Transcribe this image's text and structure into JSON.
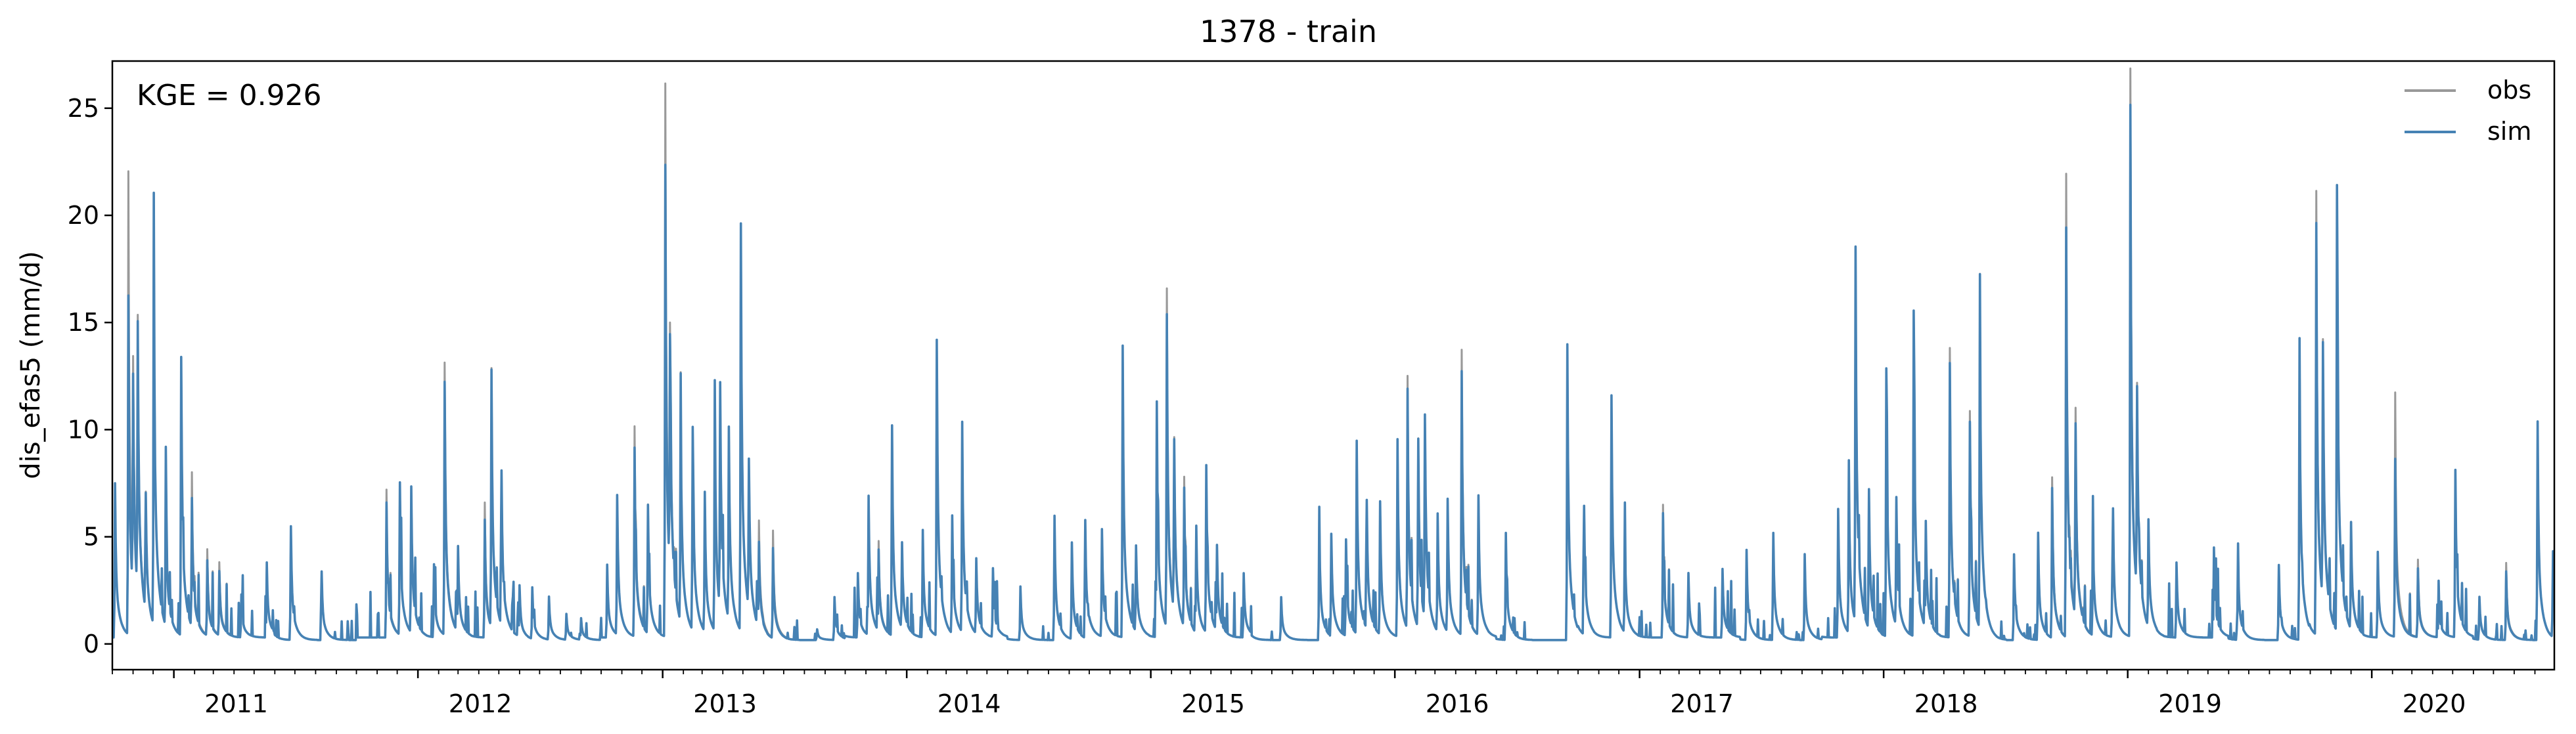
{
  "chart_data": {
    "type": "line",
    "title": "1378 - train",
    "xlabel": "",
    "ylabel": "dis_efas5 (mm/d)",
    "annotation": "KGE = 0.926",
    "xlim": [
      "2010-10-01",
      "2020-09-30"
    ],
    "ylim": [
      -1.2,
      27.2
    ],
    "yticks": [
      0,
      5,
      10,
      15,
      20,
      25
    ],
    "ytick_labels": [
      "0",
      "5",
      "10",
      "15",
      "20",
      "25"
    ],
    "xticks": [
      "2011-01-01",
      "2012-01-01",
      "2013-01-01",
      "2014-01-01",
      "2015-01-01",
      "2016-01-01",
      "2017-01-01",
      "2018-01-01",
      "2019-01-01",
      "2020-01-01"
    ],
    "xtick_labels": [
      "2011",
      "2012",
      "2013",
      "2014",
      "2015",
      "2016",
      "2017",
      "2018",
      "2019",
      "2020"
    ],
    "grid": false,
    "legend_position": "top-right",
    "series": [
      {
        "name": "obs",
        "color": "#999999",
        "peaks": [
          [
            "2010-10-05",
            7.2
          ],
          [
            "2010-10-25",
            21.6
          ],
          [
            "2010-11-01",
            10.0
          ],
          [
            "2010-11-08",
            12.5
          ],
          [
            "2010-11-20",
            5.5
          ],
          [
            "2010-12-02",
            18.1
          ],
          [
            "2010-12-20",
            6.5
          ],
          [
            "2011-01-12",
            13.0
          ],
          [
            "2011-01-28",
            7.2
          ],
          [
            "2011-02-20",
            4.0
          ],
          [
            "2011-03-10",
            3.4
          ],
          [
            "2011-04-12",
            2.0
          ],
          [
            "2011-05-20",
            3.5
          ],
          [
            "2011-06-25",
            5.3
          ],
          [
            "2011-08-10",
            3.2
          ],
          [
            "2011-11-15",
            6.9
          ],
          [
            "2011-12-05",
            7.1
          ],
          [
            "2011-12-22",
            6.8
          ],
          [
            "2012-01-25",
            3.4
          ],
          [
            "2012-02-10",
            12.7
          ],
          [
            "2012-03-01",
            4.0
          ],
          [
            "2012-04-10",
            6.3
          ],
          [
            "2012-04-20",
            12.0
          ],
          [
            "2012-05-05",
            7.2
          ],
          [
            "2012-06-01",
            2.5
          ],
          [
            "2012-06-20",
            2.4
          ],
          [
            "2012-07-15",
            2.0
          ],
          [
            "2012-08-10",
            1.2
          ],
          [
            "2012-09-01",
            1.0
          ],
          [
            "2012-10-10",
            3.4
          ],
          [
            "2012-10-25",
            6.5
          ],
          [
            "2012-11-20",
            9.8
          ],
          [
            "2012-12-10",
            6.0
          ],
          [
            "2013-01-05",
            25.8
          ],
          [
            "2013-01-12",
            11.0
          ],
          [
            "2013-01-28",
            10.2
          ],
          [
            "2013-02-15",
            9.5
          ],
          [
            "2013-03-05",
            6.5
          ],
          [
            "2013-03-20",
            10.8
          ],
          [
            "2013-03-28",
            10.5
          ],
          [
            "2013-04-10",
            9.0
          ],
          [
            "2013-04-28",
            19.0
          ],
          [
            "2013-05-10",
            7.0
          ],
          [
            "2013-05-25",
            5.0
          ],
          [
            "2013-06-15",
            5.0
          ],
          [
            "2013-08-20",
            0.5
          ],
          [
            "2013-09-15",
            2.0
          ],
          [
            "2013-10-20",
            3.0
          ],
          [
            "2013-11-05",
            6.5
          ],
          [
            "2013-11-20",
            4.2
          ],
          [
            "2013-12-10",
            9.8
          ],
          [
            "2013-12-25",
            4.0
          ],
          [
            "2014-01-25",
            5.0
          ],
          [
            "2014-02-15",
            13.8
          ],
          [
            "2014-03-10",
            5.5
          ],
          [
            "2014-03-25",
            9.8
          ],
          [
            "2014-04-15",
            3.5
          ],
          [
            "2014-05-10",
            3.2
          ],
          [
            "2014-06-20",
            2.5
          ],
          [
            "2014-08-10",
            5.8
          ],
          [
            "2014-09-05",
            4.5
          ],
          [
            "2014-09-25",
            5.5
          ],
          [
            "2014-10-20",
            5.0
          ],
          [
            "2014-11-20",
            13.6
          ],
          [
            "2014-12-10",
            4.0
          ],
          [
            "2015-01-10",
            11.0
          ],
          [
            "2015-01-25",
            15.8
          ],
          [
            "2015-02-05",
            8.0
          ],
          [
            "2015-02-20",
            7.0
          ],
          [
            "2015-03-10",
            5.0
          ],
          [
            "2015-03-25",
            7.8
          ],
          [
            "2015-04-10",
            4.0
          ],
          [
            "2015-05-20",
            3.0
          ],
          [
            "2015-07-15",
            2.0
          ],
          [
            "2015-09-10",
            5.5
          ],
          [
            "2015-09-28",
            4.8
          ],
          [
            "2015-10-20",
            4.5
          ],
          [
            "2015-11-05",
            9.0
          ],
          [
            "2015-11-20",
            6.0
          ],
          [
            "2015-12-10",
            6.2
          ],
          [
            "2016-01-05",
            9.2
          ],
          [
            "2016-01-20",
            11.8
          ],
          [
            "2016-02-05",
            8.8
          ],
          [
            "2016-02-15",
            9.5
          ],
          [
            "2016-03-05",
            5.5
          ],
          [
            "2016-03-20",
            6.2
          ],
          [
            "2016-04-10",
            13.3
          ],
          [
            "2016-05-05",
            6.5
          ],
          [
            "2016-06-15",
            5.0
          ],
          [
            "2016-09-15",
            13.8
          ],
          [
            "2016-10-10",
            6.0
          ],
          [
            "2016-11-20",
            11.3
          ],
          [
            "2016-12-10",
            4.5
          ],
          [
            "2017-02-05",
            6.2
          ],
          [
            "2017-03-15",
            3.0
          ],
          [
            "2017-05-05",
            3.2
          ],
          [
            "2017-06-10",
            4.2
          ],
          [
            "2017-07-20",
            5.0
          ],
          [
            "2017-09-05",
            3.8
          ],
          [
            "2017-10-25",
            6.0
          ],
          [
            "2017-11-10",
            7.5
          ],
          [
            "2017-11-20",
            17.5
          ],
          [
            "2017-12-10",
            6.5
          ],
          [
            "2018-01-05",
            12.5
          ],
          [
            "2018-01-20",
            6.0
          ],
          [
            "2018-02-15",
            15.2
          ],
          [
            "2018-03-05",
            5.0
          ],
          [
            "2018-04-10",
            13.5
          ],
          [
            "2018-05-10",
            10.5
          ],
          [
            "2018-05-25",
            15.3
          ],
          [
            "2018-07-15",
            4.0
          ],
          [
            "2018-08-20",
            5.0
          ],
          [
            "2018-09-10",
            7.5
          ],
          [
            "2018-10-01",
            21.5
          ],
          [
            "2018-10-15",
            9.6
          ],
          [
            "2018-11-10",
            5.0
          ],
          [
            "2018-12-10",
            6.0
          ],
          [
            "2019-01-05",
            26.0
          ],
          [
            "2019-01-15",
            9.5
          ],
          [
            "2019-02-01",
            5.0
          ],
          [
            "2019-03-15",
            3.5
          ],
          [
            "2019-05-10",
            4.2
          ],
          [
            "2019-06-15",
            4.0
          ],
          [
            "2019-08-15",
            3.5
          ],
          [
            "2019-09-15",
            13.2
          ],
          [
            "2019-10-10",
            20.7
          ],
          [
            "2019-10-20",
            12.0
          ],
          [
            "2019-11-10",
            20.8
          ],
          [
            "2019-12-01",
            5.0
          ],
          [
            "2020-01-10",
            4.0
          ],
          [
            "2020-02-05",
            11.4
          ],
          [
            "2020-03-10",
            3.6
          ],
          [
            "2020-04-10",
            2.0
          ],
          [
            "2020-05-05",
            7.8
          ],
          [
            "2020-06-10",
            2.0
          ],
          [
            "2020-07-20",
            3.6
          ],
          [
            "2020-09-05",
            10.2
          ],
          [
            "2020-09-28",
            4.0
          ]
        ]
      },
      {
        "name": "sim",
        "color": "#4682b4",
        "peaks": [
          [
            "2010-10-05",
            7.2
          ],
          [
            "2010-10-25",
            15.8
          ],
          [
            "2010-11-01",
            10.0
          ],
          [
            "2010-11-08",
            12.5
          ],
          [
            "2010-11-20",
            5.5
          ],
          [
            "2010-12-02",
            18.1
          ],
          [
            "2010-12-20",
            6.5
          ],
          [
            "2011-01-12",
            13.0
          ],
          [
            "2011-01-28",
            6.0
          ],
          [
            "2011-02-20",
            3.5
          ],
          [
            "2011-03-10",
            3.0
          ],
          [
            "2011-04-12",
            2.0
          ],
          [
            "2011-05-20",
            3.5
          ],
          [
            "2011-06-25",
            5.3
          ],
          [
            "2011-08-10",
            3.2
          ],
          [
            "2011-11-15",
            6.3
          ],
          [
            "2011-12-05",
            7.1
          ],
          [
            "2011-12-22",
            6.8
          ],
          [
            "2012-01-25",
            3.4
          ],
          [
            "2012-02-10",
            11.8
          ],
          [
            "2012-03-01",
            4.0
          ],
          [
            "2012-04-10",
            5.5
          ],
          [
            "2012-04-20",
            12.0
          ],
          [
            "2012-05-05",
            7.2
          ],
          [
            "2012-06-01",
            2.5
          ],
          [
            "2012-06-20",
            2.4
          ],
          [
            "2012-07-15",
            2.0
          ],
          [
            "2012-08-10",
            1.2
          ],
          [
            "2012-09-01",
            1.0
          ],
          [
            "2012-10-10",
            3.4
          ],
          [
            "2012-10-25",
            6.5
          ],
          [
            "2012-11-20",
            8.8
          ],
          [
            "2012-12-10",
            6.0
          ],
          [
            "2013-01-05",
            22.0
          ],
          [
            "2013-01-12",
            11.0
          ],
          [
            "2013-01-28",
            10.2
          ],
          [
            "2013-02-15",
            9.5
          ],
          [
            "2013-03-05",
            6.5
          ],
          [
            "2013-03-20",
            10.8
          ],
          [
            "2013-03-28",
            10.5
          ],
          [
            "2013-04-10",
            9.0
          ],
          [
            "2013-04-28",
            19.0
          ],
          [
            "2013-05-10",
            7.0
          ],
          [
            "2013-05-25",
            4.0
          ],
          [
            "2013-06-15",
            4.2
          ],
          [
            "2013-08-20",
            0.5
          ],
          [
            "2013-09-15",
            2.0
          ],
          [
            "2013-10-20",
            3.0
          ],
          [
            "2013-11-05",
            6.5
          ],
          [
            "2013-11-20",
            3.8
          ],
          [
            "2013-12-10",
            9.8
          ],
          [
            "2013-12-25",
            4.0
          ],
          [
            "2014-01-25",
            5.0
          ],
          [
            "2014-02-15",
            13.8
          ],
          [
            "2014-03-10",
            5.5
          ],
          [
            "2014-03-25",
            9.8
          ],
          [
            "2014-04-15",
            3.5
          ],
          [
            "2014-05-10",
            3.2
          ],
          [
            "2014-06-20",
            2.5
          ],
          [
            "2014-08-10",
            5.8
          ],
          [
            "2014-09-05",
            4.5
          ],
          [
            "2014-09-25",
            5.5
          ],
          [
            "2014-10-20",
            5.0
          ],
          [
            "2014-11-20",
            13.6
          ],
          [
            "2014-12-10",
            4.0
          ],
          [
            "2015-01-10",
            11.0
          ],
          [
            "2015-01-25",
            14.6
          ],
          [
            "2015-02-05",
            8.0
          ],
          [
            "2015-02-20",
            6.5
          ],
          [
            "2015-03-10",
            5.0
          ],
          [
            "2015-03-25",
            7.8
          ],
          [
            "2015-04-10",
            4.0
          ],
          [
            "2015-05-20",
            3.0
          ],
          [
            "2015-07-15",
            2.0
          ],
          [
            "2015-09-10",
            5.5
          ],
          [
            "2015-09-28",
            4.8
          ],
          [
            "2015-10-20",
            4.5
          ],
          [
            "2015-11-05",
            9.0
          ],
          [
            "2015-11-20",
            6.0
          ],
          [
            "2015-12-10",
            6.2
          ],
          [
            "2016-01-05",
            9.2
          ],
          [
            "2016-01-20",
            11.2
          ],
          [
            "2016-02-05",
            8.8
          ],
          [
            "2016-02-15",
            9.5
          ],
          [
            "2016-03-05",
            5.5
          ],
          [
            "2016-03-20",
            6.2
          ],
          [
            "2016-04-10",
            12.3
          ],
          [
            "2016-05-05",
            6.5
          ],
          [
            "2016-06-15",
            5.0
          ],
          [
            "2016-09-15",
            13.8
          ],
          [
            "2016-10-10",
            6.0
          ],
          [
            "2016-11-20",
            11.3
          ],
          [
            "2016-12-10",
            4.5
          ],
          [
            "2017-02-05",
            5.8
          ],
          [
            "2017-03-15",
            3.0
          ],
          [
            "2017-05-05",
            3.2
          ],
          [
            "2017-06-10",
            4.2
          ],
          [
            "2017-07-20",
            5.0
          ],
          [
            "2017-09-05",
            3.8
          ],
          [
            "2017-10-25",
            6.0
          ],
          [
            "2017-11-10",
            7.5
          ],
          [
            "2017-11-20",
            17.5
          ],
          [
            "2017-12-10",
            6.5
          ],
          [
            "2018-01-05",
            12.5
          ],
          [
            "2018-01-20",
            6.0
          ],
          [
            "2018-02-15",
            15.2
          ],
          [
            "2018-03-05",
            5.0
          ],
          [
            "2018-04-10",
            12.8
          ],
          [
            "2018-05-10",
            10.0
          ],
          [
            "2018-05-25",
            15.3
          ],
          [
            "2018-07-15",
            4.0
          ],
          [
            "2018-08-20",
            5.0
          ],
          [
            "2018-09-10",
            7.0
          ],
          [
            "2018-10-01",
            19.0
          ],
          [
            "2018-10-15",
            9.0
          ],
          [
            "2018-11-10",
            5.0
          ],
          [
            "2018-12-10",
            6.0
          ],
          [
            "2019-01-05",
            24.3
          ],
          [
            "2019-01-15",
            9.5
          ],
          [
            "2019-02-01",
            5.0
          ],
          [
            "2019-03-15",
            3.5
          ],
          [
            "2019-05-10",
            4.2
          ],
          [
            "2019-06-15",
            4.0
          ],
          [
            "2019-08-15",
            3.5
          ],
          [
            "2019-09-15",
            13.2
          ],
          [
            "2019-10-10",
            19.2
          ],
          [
            "2019-10-20",
            12.0
          ],
          [
            "2019-11-10",
            20.8
          ],
          [
            "2019-12-01",
            5.0
          ],
          [
            "2020-01-10",
            4.0
          ],
          [
            "2020-02-05",
            8.3
          ],
          [
            "2020-03-10",
            3.2
          ],
          [
            "2020-04-10",
            2.0
          ],
          [
            "2020-05-05",
            7.8
          ],
          [
            "2020-06-10",
            2.0
          ],
          [
            "2020-07-20",
            3.2
          ],
          [
            "2020-09-05",
            10.2
          ],
          [
            "2020-09-28",
            4.0
          ]
        ]
      }
    ]
  }
}
